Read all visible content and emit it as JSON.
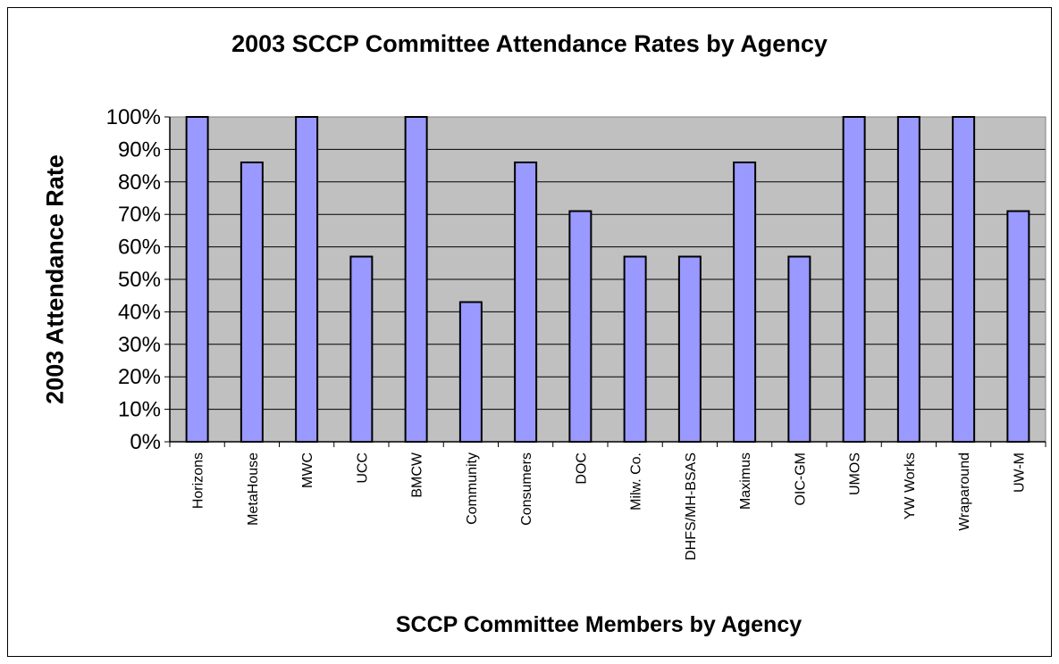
{
  "chart_data": {
    "type": "bar",
    "title": "2003 SCCP Committee Attendance Rates by Agency",
    "xlabel": "SCCP Committee Members by Agency",
    "ylabel": "2003 Attendance Rate",
    "categories": [
      "Horizons",
      "MetaHouse",
      "MWC",
      "UCC",
      "BMCW",
      "Community",
      "Consumers",
      "DOC",
      "Milw. Co.",
      "DHFS/MH-BSAS",
      "Maximus",
      "OIC-GM",
      "UMOS",
      "YW Works",
      "Wraparound",
      "UW-M"
    ],
    "values": [
      100,
      86,
      100,
      57,
      100,
      43,
      86,
      71,
      57,
      57,
      86,
      57,
      100,
      100,
      100,
      71
    ],
    "ylim": [
      0,
      100
    ],
    "y_ticks": [
      "0%",
      "10%",
      "20%",
      "30%",
      "40%",
      "50%",
      "60%",
      "70%",
      "80%",
      "90%",
      "100%"
    ],
    "grid": true,
    "colors": {
      "bar": "#9999ff",
      "plot_background": "#c0c0c0",
      "bar_edge": "#000000"
    }
  }
}
